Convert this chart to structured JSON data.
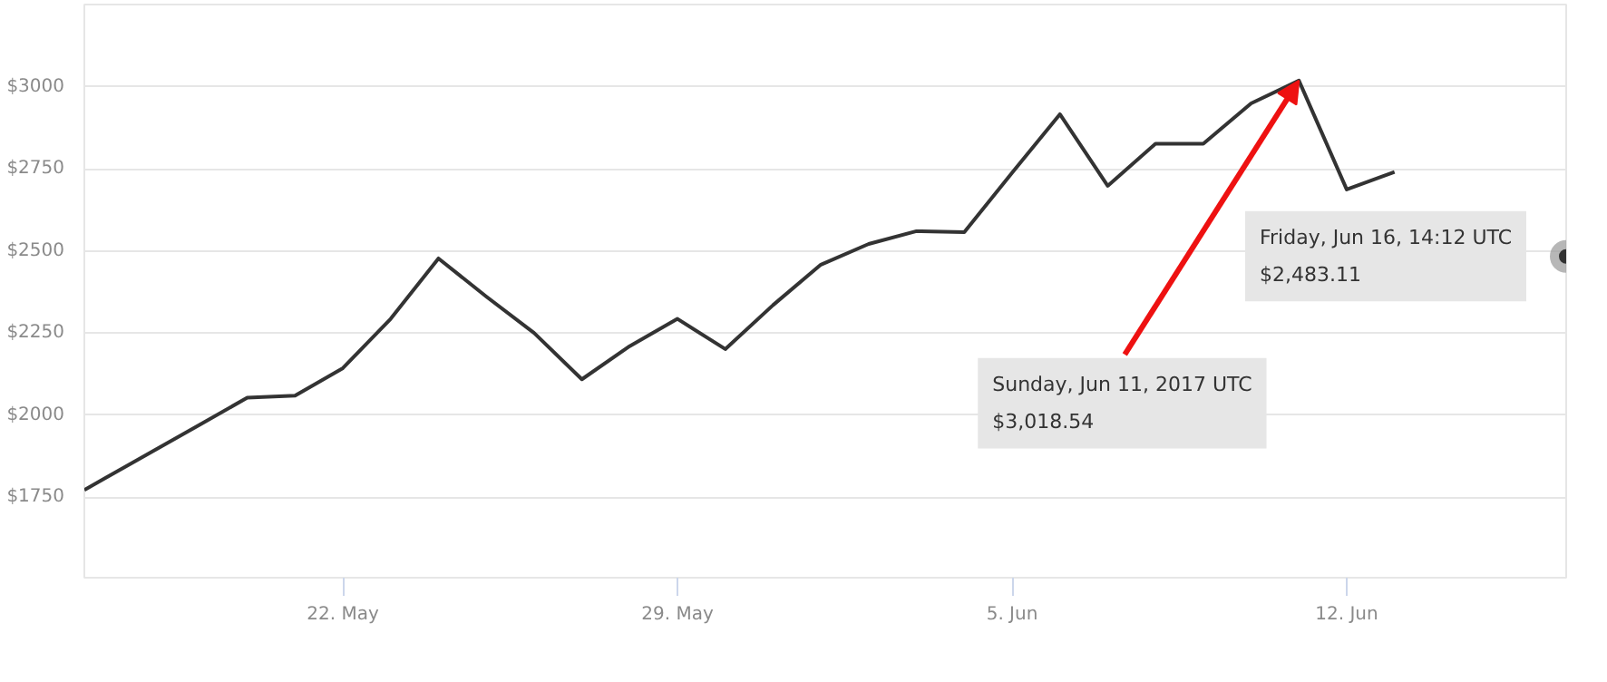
{
  "chart_data": {
    "type": "line",
    "xlim": [
      "2017-05-16T14:12",
      "2017-06-16T14:12"
    ],
    "ylim": [
      1505,
      3250
    ],
    "xticks": [
      {
        "value": "2017-05-22",
        "label": "22. May"
      },
      {
        "value": "2017-05-29",
        "label": "29. May"
      },
      {
        "value": "2017-06-05",
        "label": "5. Jun"
      },
      {
        "value": "2017-06-12",
        "label": "12. Jun"
      }
    ],
    "yticks": [
      {
        "value": 1750,
        "label": "$1750"
      },
      {
        "value": 2000,
        "label": "$2000"
      },
      {
        "value": 2250,
        "label": "$2250"
      },
      {
        "value": 2500,
        "label": "$2500"
      },
      {
        "value": 2750,
        "label": "$2750"
      },
      {
        "value": 3000,
        "label": "$3000"
      }
    ],
    "grid": "y",
    "marker": "none",
    "line_style": "solid",
    "series": [
      {
        "color": "#333333",
        "x": [
          "2017-05-16T14:12",
          "2017-05-17",
          "2017-05-18",
          "2017-05-19",
          "2017-05-20",
          "2017-05-21",
          "2017-05-22",
          "2017-05-23",
          "2017-05-24",
          "2017-05-25",
          "2017-05-26",
          "2017-05-27",
          "2017-05-28",
          "2017-05-29",
          "2017-05-30",
          "2017-05-31",
          "2017-06-01",
          "2017-06-02",
          "2017-06-03",
          "2017-06-04",
          "2017-06-05",
          "2017-06-06",
          "2017-06-07",
          "2017-06-08",
          "2017-06-09",
          "2017-06-10",
          "2017-06-11",
          "2017-06-12",
          "2017-06-13"
        ],
        "values": [
          1772,
          1806,
          1888,
          1970,
          2053,
          2059,
          2143,
          2293,
          2477,
          2361,
          2250,
          2109,
          2210,
          2293,
          2201,
          2335,
          2458,
          2521,
          2560,
          2557,
          2738,
          2916,
          2698,
          2826,
          2826,
          2949,
          3018.54,
          2687,
          2740
        ]
      },
      {
        "type": "scatter",
        "marker": "circle",
        "color": "#333333",
        "x": [
          "2017-06-16T14:12"
        ],
        "values": [
          2483.11
        ]
      }
    ],
    "annotations": [
      {
        "text": "Sunday, Jun 11, 2017 UTC\n$3,018.54",
        "x": "2017-06-11",
        "y": 3018.54
      },
      {
        "text": "Friday, Jun 16, 14:12 UTC\n$2,483.11",
        "x": "2017-06-16T14:12",
        "y": 2483.11
      }
    ]
  }
}
